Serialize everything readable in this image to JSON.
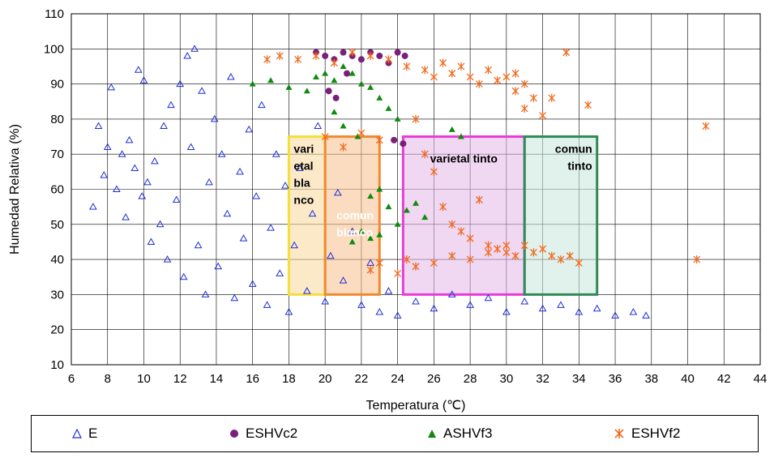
{
  "chart_data": {
    "type": "scatter",
    "xlabel": "Temperatura (℃)",
    "ylabel": "Humedad Relativa (%)",
    "xlim": [
      6,
      44
    ],
    "ylim": [
      10,
      110
    ],
    "xticks": [
      6,
      8,
      10,
      12,
      14,
      16,
      18,
      20,
      22,
      24,
      26,
      28,
      30,
      32,
      34,
      36,
      38,
      40,
      42,
      44
    ],
    "yticks": [
      10,
      20,
      30,
      40,
      50,
      60,
      70,
      80,
      90,
      100,
      110
    ],
    "grid": true,
    "legend_position": "bottom",
    "series": [
      {
        "name": "E",
        "marker": "open-triangle",
        "color": "#1f2fd6",
        "points": [
          [
            7.2,
            55
          ],
          [
            7.5,
            78
          ],
          [
            7.8,
            64
          ],
          [
            8.0,
            72
          ],
          [
            8.2,
            89
          ],
          [
            8.5,
            60
          ],
          [
            8.8,
            70
          ],
          [
            9.0,
            52
          ],
          [
            9.2,
            74
          ],
          [
            9.5,
            66
          ],
          [
            9.7,
            94
          ],
          [
            9.9,
            58
          ],
          [
            10.0,
            91
          ],
          [
            10.2,
            62
          ],
          [
            10.4,
            45
          ],
          [
            10.6,
            68
          ],
          [
            10.9,
            50
          ],
          [
            11.1,
            78
          ],
          [
            11.3,
            40
          ],
          [
            11.5,
            84
          ],
          [
            11.8,
            57
          ],
          [
            12.0,
            90
          ],
          [
            12.2,
            35
          ],
          [
            12.4,
            98
          ],
          [
            12.6,
            72
          ],
          [
            12.8,
            100
          ],
          [
            13.0,
            44
          ],
          [
            13.2,
            88
          ],
          [
            13.4,
            30
          ],
          [
            13.6,
            62
          ],
          [
            13.9,
            80
          ],
          [
            14.1,
            38
          ],
          [
            14.3,
            70
          ],
          [
            14.6,
            53
          ],
          [
            14.8,
            92
          ],
          [
            15.0,
            29
          ],
          [
            15.3,
            65
          ],
          [
            15.5,
            46
          ],
          [
            15.8,
            77
          ],
          [
            16.0,
            33
          ],
          [
            16.2,
            58
          ],
          [
            16.5,
            84
          ],
          [
            16.8,
            27
          ],
          [
            17.0,
            49
          ],
          [
            17.3,
            70
          ],
          [
            17.5,
            36
          ],
          [
            17.8,
            61
          ],
          [
            18.0,
            25
          ],
          [
            18.3,
            44
          ],
          [
            18.6,
            66
          ],
          [
            19.0,
            31
          ],
          [
            19.3,
            53
          ],
          [
            19.6,
            78
          ],
          [
            20.0,
            28
          ],
          [
            20.3,
            41
          ],
          [
            20.7,
            59
          ],
          [
            21.0,
            34
          ],
          [
            21.5,
            48
          ],
          [
            22.0,
            27
          ],
          [
            22.5,
            39
          ],
          [
            23.0,
            25
          ],
          [
            23.5,
            31
          ],
          [
            24.0,
            24
          ],
          [
            25.0,
            28
          ],
          [
            26.0,
            26
          ],
          [
            27.0,
            30
          ],
          [
            28.0,
            27
          ],
          [
            29.0,
            29
          ],
          [
            30.0,
            25
          ],
          [
            31.0,
            28
          ],
          [
            32.0,
            26
          ],
          [
            33.0,
            27
          ],
          [
            34.0,
            25
          ],
          [
            35.0,
            26
          ],
          [
            36.0,
            24
          ],
          [
            37.0,
            25
          ],
          [
            37.7,
            24
          ]
        ]
      },
      {
        "name": "ESHVc2",
        "marker": "filled-circle",
        "color": "#7a1f7a",
        "points": [
          [
            19.5,
            99
          ],
          [
            20.0,
            98
          ],
          [
            20.5,
            97
          ],
          [
            21.0,
            99
          ],
          [
            21.5,
            98
          ],
          [
            22.0,
            97
          ],
          [
            22.5,
            99
          ],
          [
            23.0,
            98
          ],
          [
            23.5,
            96
          ],
          [
            24.0,
            99
          ],
          [
            24.4,
            98
          ],
          [
            20.2,
            88
          ],
          [
            20.6,
            86
          ],
          [
            21.2,
            93
          ],
          [
            23.8,
            74
          ],
          [
            24.3,
            73
          ]
        ]
      },
      {
        "name": "ASHVf3",
        "marker": "filled-triangle",
        "color": "#0f8a0f",
        "points": [
          [
            16.0,
            90
          ],
          [
            17.0,
            91
          ],
          [
            18.0,
            89
          ],
          [
            19.0,
            88
          ],
          [
            19.5,
            92
          ],
          [
            20.0,
            93
          ],
          [
            20.5,
            91
          ],
          [
            21.0,
            95
          ],
          [
            21.5,
            93
          ],
          [
            22.0,
            90
          ],
          [
            22.5,
            89
          ],
          [
            23.0,
            86
          ],
          [
            23.5,
            83
          ],
          [
            24.0,
            80
          ],
          [
            20.5,
            82
          ],
          [
            21.0,
            78
          ],
          [
            21.8,
            75
          ],
          [
            22.5,
            58
          ],
          [
            23.0,
            60
          ],
          [
            23.5,
            55
          ],
          [
            24.0,
            50
          ],
          [
            24.5,
            54
          ],
          [
            25.0,
            56
          ],
          [
            25.5,
            52
          ],
          [
            22.0,
            48
          ],
          [
            22.5,
            46
          ],
          [
            23.0,
            47
          ],
          [
            21.5,
            45
          ],
          [
            27.0,
            77
          ],
          [
            27.5,
            75
          ]
        ]
      },
      {
        "name": "ESHVf2",
        "marker": "asterisk",
        "color": "#f06a1e",
        "points": [
          [
            16.8,
            97
          ],
          [
            17.5,
            98
          ],
          [
            18.5,
            97
          ],
          [
            19.5,
            98
          ],
          [
            20.5,
            96
          ],
          [
            21.5,
            99
          ],
          [
            22.5,
            98
          ],
          [
            23.5,
            97
          ],
          [
            24.5,
            95
          ],
          [
            25.5,
            94
          ],
          [
            26.0,
            92
          ],
          [
            26.5,
            96
          ],
          [
            27.0,
            93
          ],
          [
            27.5,
            95
          ],
          [
            28.0,
            92
          ],
          [
            28.5,
            90
          ],
          [
            29.0,
            94
          ],
          [
            29.5,
            91
          ],
          [
            30.0,
            92
          ],
          [
            30.5,
            88
          ],
          [
            31.0,
            90
          ],
          [
            31.5,
            86
          ],
          [
            30.5,
            93
          ],
          [
            32.5,
            86
          ],
          [
            32.0,
            81
          ],
          [
            34.5,
            84
          ],
          [
            33.3,
            99
          ],
          [
            31.0,
            83
          ],
          [
            25.0,
            80
          ],
          [
            25.5,
            70
          ],
          [
            26.0,
            65
          ],
          [
            26.5,
            55
          ],
          [
            27.0,
            50
          ],
          [
            27.5,
            48
          ],
          [
            28.0,
            46
          ],
          [
            28.5,
            57
          ],
          [
            29.0,
            44
          ],
          [
            29.5,
            43
          ],
          [
            30.0,
            42
          ],
          [
            30.5,
            41
          ],
          [
            31.0,
            44
          ],
          [
            31.5,
            42
          ],
          [
            32.0,
            43
          ],
          [
            32.5,
            41
          ],
          [
            33.0,
            40
          ],
          [
            33.5,
            41
          ],
          [
            34.0,
            39
          ],
          [
            24.5,
            40
          ],
          [
            25.0,
            38
          ],
          [
            26.0,
            39
          ],
          [
            27.0,
            41
          ],
          [
            28.0,
            40
          ],
          [
            29.0,
            42
          ],
          [
            30.0,
            44
          ],
          [
            24.0,
            36
          ],
          [
            22.5,
            37
          ],
          [
            23.0,
            39
          ],
          [
            40.5,
            40
          ],
          [
            41.0,
            78
          ],
          [
            20.0,
            75
          ],
          [
            21.0,
            72
          ],
          [
            22.0,
            76
          ],
          [
            23.0,
            74
          ]
        ]
      }
    ],
    "zones": [
      {
        "label_lines": [
          "vari",
          "etal",
          "bla",
          "nco"
        ],
        "x": [
          18,
          20
        ],
        "y": [
          30,
          75
        ],
        "fill": "#f7d79a",
        "stroke": "#f3df3a",
        "text_color": "#000000"
      },
      {
        "label_lines": [
          "comun",
          "blanco"
        ],
        "x": [
          20,
          23
        ],
        "y": [
          30,
          75
        ],
        "fill": "#f7c08c",
        "stroke": "#f08a30",
        "text_color": "#ffffff"
      },
      {
        "label_lines": [
          "varietal tinto"
        ],
        "x": [
          24.3,
          31
        ],
        "y": [
          30,
          75
        ],
        "fill": "#e3b7e8",
        "stroke": "#e83cd8",
        "text_color": "#000000"
      },
      {
        "label_lines": [
          "comun",
          "tinto"
        ],
        "x": [
          31,
          35
        ],
        "y": [
          30,
          75
        ],
        "fill": "#c9e8dc",
        "stroke": "#2e8b57",
        "text_color": "#000000"
      }
    ]
  }
}
